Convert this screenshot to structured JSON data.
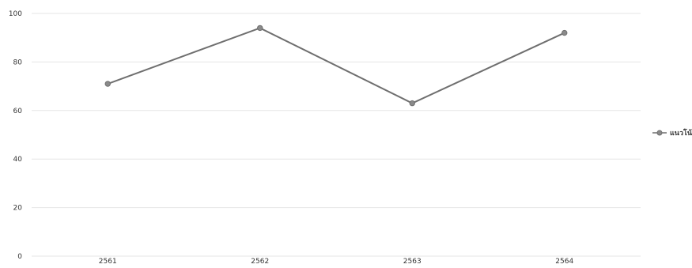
{
  "chart_data": {
    "type": "line",
    "categories": [
      "2561",
      "2562",
      "2563",
      "2564"
    ],
    "series": [
      {
        "name": "แนวโน้ม",
        "values": [
          71,
          94,
          63,
          92
        ]
      }
    ],
    "ylim": [
      0,
      100
    ],
    "yticks": [
      "0",
      "20",
      "40",
      "60",
      "80",
      "100"
    ],
    "grid": true,
    "legend": "right",
    "colors": {
      "line": "#6f6f6f",
      "marker": "#8a8a8a",
      "grid": "#e6e6e6",
      "text": "#333333"
    }
  }
}
